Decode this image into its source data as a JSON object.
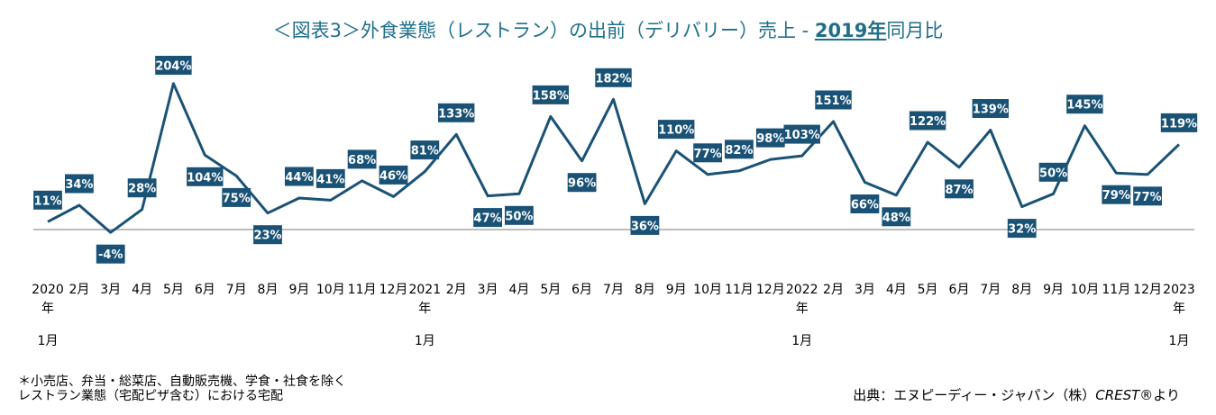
{
  "title": {
    "main": "＜図表3＞外食業態（レストラン）の出前（デリバリー）売上 - ",
    "highlight": "2019年",
    "suffix": "同月比"
  },
  "footnote": {
    "line1": "＊小売店、弁当・総菜店、自動販売機、学食・社食を除く",
    "line2": "レストラン業態（宅配ピザ含む）における宅配"
  },
  "source": {
    "prefix": "出典：エヌピーディー・ジャパン（株）",
    "italic": "CREST®",
    "suffix": "より"
  },
  "colors": {
    "line": "#1a5276",
    "label_bg": "#1a5276",
    "label_text": "#ffffff",
    "axis": "#a6a6a6",
    "title": "#1f6f8b"
  },
  "chart_data": {
    "type": "line",
    "title": "＜図表3＞外食業態（レストラン）の出前（デリバリー）売上 - 2019年同月比",
    "categories": [
      "2020年1月",
      "2月",
      "3月",
      "4月",
      "5月",
      "6月",
      "7月",
      "8月",
      "9月",
      "10月",
      "11月",
      "12月",
      "2021年1月",
      "2月",
      "3月",
      "4月",
      "5月",
      "6月",
      "7月",
      "8月",
      "9月",
      "10月",
      "11月",
      "12月",
      "2022年1月",
      "2月",
      "3月",
      "4月",
      "5月",
      "6月",
      "7月",
      "8月",
      "9月",
      "10月",
      "11月",
      "12月",
      "2023年1月"
    ],
    "values": [
      11,
      34,
      -4,
      28,
      204,
      104,
      75,
      23,
      44,
      41,
      68,
      46,
      81,
      133,
      47,
      50,
      158,
      96,
      182,
      36,
      110,
      77,
      82,
      98,
      103,
      151,
      66,
      48,
      122,
      87,
      139,
      32,
      50,
      145,
      79,
      77,
      119
    ],
    "labels": [
      "11%",
      "34%",
      "-4%",
      "28%",
      "204%",
      "104%",
      "75%",
      "23%",
      "44%",
      "41%",
      "68%",
      "46%",
      "81%",
      "133%",
      "47%",
      "50%",
      "158%",
      "96%",
      "182%",
      "36%",
      "110%",
      "77%",
      "82%",
      "98%",
      "103%",
      "151%",
      "66%",
      "48%",
      "122%",
      "87%",
      "139%",
      "32%",
      "50%",
      "145%",
      "79%",
      "77%",
      "119%"
    ],
    "year_ticks": [
      {
        "index": 0,
        "year": "2020",
        "nen": "年",
        "month": "1月"
      },
      {
        "index": 12,
        "year": "2021",
        "nen": "年",
        "month": "1月"
      },
      {
        "index": 24,
        "year": "2022",
        "nen": "年",
        "month": "1月"
      },
      {
        "index": 36,
        "year": "2023",
        "nen": "年",
        "month": "1月"
      }
    ],
    "unit": "%",
    "grid": false
  }
}
